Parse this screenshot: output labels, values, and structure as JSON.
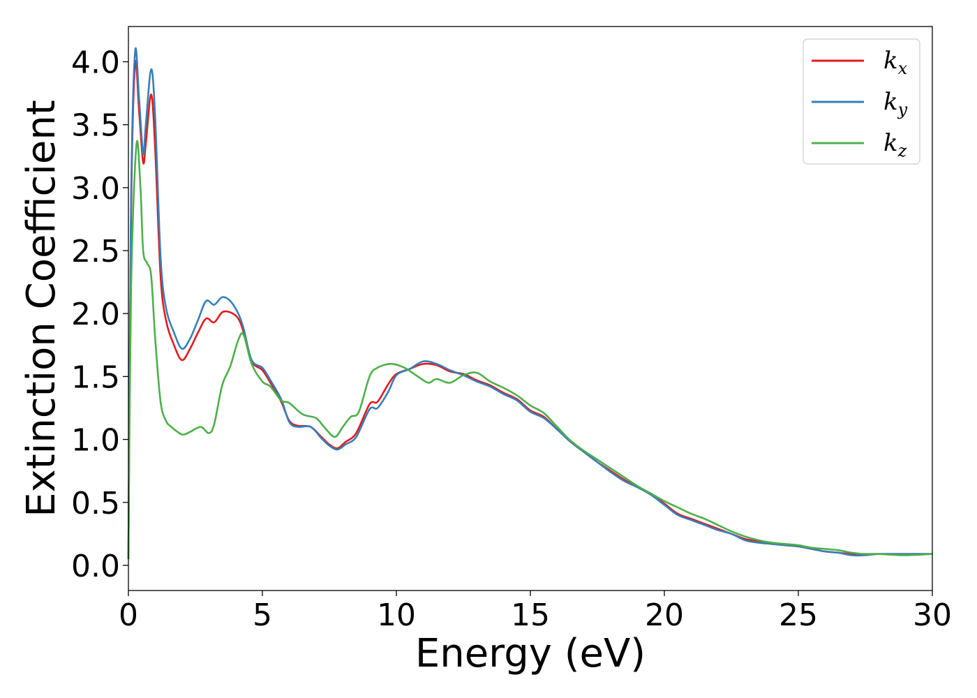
{
  "chart_data": {
    "type": "line",
    "xlabel": "Energy (eV)",
    "ylabel": "Extinction Coefficient",
    "xlim": [
      0,
      30
    ],
    "ylim": [
      -0.2,
      4.28
    ],
    "xticks": [
      0,
      5,
      10,
      15,
      20,
      25,
      30
    ],
    "xtick_labels": [
      "0",
      "5",
      "10",
      "15",
      "20",
      "25",
      "30"
    ],
    "yticks": [
      0.0,
      0.5,
      1.0,
      1.5,
      2.0,
      2.5,
      3.0,
      3.5,
      4.0
    ],
    "ytick_labels": [
      "0.0",
      "0.5",
      "1.0",
      "1.5",
      "2.0",
      "2.5",
      "3.0",
      "3.5",
      "4.0"
    ],
    "grid": false,
    "legend_position": "top-right",
    "series": [
      {
        "name": "k_x",
        "legend_base": "k",
        "legend_sub": "x",
        "color": "#e41a1c",
        "x": [
          0,
          0.1,
          0.25,
          0.4,
          0.55,
          0.65,
          0.85,
          1.0,
          1.2,
          1.4,
          1.7,
          2.0,
          2.3,
          2.6,
          2.9,
          3.2,
          3.5,
          3.8,
          4.1,
          4.3,
          4.6,
          5.0,
          5.3,
          5.7,
          6.0,
          6.3,
          6.8,
          7.2,
          7.5,
          7.8,
          8.1,
          8.5,
          9.0,
          9.3,
          9.7,
          10.0,
          10.5,
          11.0,
          11.5,
          12.0,
          12.5,
          13.0,
          13.5,
          14.0,
          14.5,
          15.0,
          15.5,
          16.0,
          16.5,
          17.0,
          17.5,
          18.0,
          18.5,
          19.0,
          19.5,
          20.0,
          20.5,
          21.0,
          21.5,
          22.0,
          22.5,
          23.0,
          23.5,
          24.0,
          24.5,
          25.0,
          25.5,
          26.0,
          26.5,
          27.0,
          27.5,
          28.0,
          29.0,
          30.0
        ],
        "values": [
          0.05,
          2.8,
          3.98,
          3.6,
          3.2,
          3.35,
          3.74,
          3.3,
          2.3,
          1.95,
          1.75,
          1.63,
          1.72,
          1.85,
          1.96,
          1.93,
          2.01,
          2.01,
          1.96,
          1.85,
          1.62,
          1.55,
          1.45,
          1.3,
          1.15,
          1.11,
          1.1,
          1.02,
          0.96,
          0.93,
          0.98,
          1.05,
          1.28,
          1.3,
          1.44,
          1.52,
          1.56,
          1.6,
          1.59,
          1.54,
          1.52,
          1.47,
          1.43,
          1.37,
          1.32,
          1.23,
          1.18,
          1.08,
          0.99,
          0.9,
          0.82,
          0.75,
          0.68,
          0.62,
          0.57,
          0.49,
          0.41,
          0.37,
          0.33,
          0.29,
          0.25,
          0.21,
          0.19,
          0.17,
          0.16,
          0.15,
          0.13,
          0.11,
          0.1,
          0.09,
          0.09,
          0.09,
          0.09,
          0.09
        ]
      },
      {
        "name": "k_y",
        "legend_base": "k",
        "legend_sub": "y",
        "color": "#377eb8",
        "x": [
          0,
          0.1,
          0.25,
          0.4,
          0.55,
          0.65,
          0.85,
          1.0,
          1.2,
          1.4,
          1.7,
          2.0,
          2.3,
          2.6,
          2.9,
          3.2,
          3.5,
          3.8,
          4.1,
          4.3,
          4.6,
          5.0,
          5.3,
          5.7,
          6.0,
          6.3,
          6.8,
          7.2,
          7.5,
          7.8,
          8.1,
          8.5,
          9.0,
          9.3,
          9.7,
          10.0,
          10.5,
          11.0,
          11.5,
          12.0,
          12.5,
          13.0,
          13.5,
          14.0,
          14.5,
          15.0,
          15.5,
          16.0,
          16.5,
          17.0,
          17.5,
          18.0,
          18.5,
          19.0,
          19.5,
          20.0,
          20.5,
          21.0,
          21.5,
          22.0,
          22.5,
          23.0,
          23.5,
          24.0,
          24.5,
          25.0,
          25.5,
          26.0,
          26.5,
          27.0,
          27.5,
          28.0,
          29.0,
          30.0
        ],
        "values": [
          0.05,
          2.9,
          4.08,
          3.7,
          3.27,
          3.5,
          3.94,
          3.55,
          2.45,
          2.05,
          1.85,
          1.72,
          1.8,
          1.95,
          2.1,
          2.07,
          2.13,
          2.1,
          2.0,
          1.88,
          1.63,
          1.57,
          1.47,
          1.32,
          1.14,
          1.1,
          1.1,
          1.01,
          0.95,
          0.92,
          0.96,
          1.02,
          1.24,
          1.25,
          1.38,
          1.51,
          1.56,
          1.62,
          1.6,
          1.55,
          1.51,
          1.46,
          1.42,
          1.36,
          1.31,
          1.22,
          1.17,
          1.08,
          0.98,
          0.9,
          0.82,
          0.74,
          0.67,
          0.62,
          0.56,
          0.48,
          0.4,
          0.36,
          0.32,
          0.28,
          0.25,
          0.2,
          0.18,
          0.17,
          0.16,
          0.15,
          0.13,
          0.11,
          0.1,
          0.08,
          0.08,
          0.09,
          0.09,
          0.09
        ]
      },
      {
        "name": "k_z",
        "legend_base": "k",
        "legend_sub": "z",
        "color": "#4daf4a",
        "x": [
          0,
          0.1,
          0.3,
          0.45,
          0.55,
          0.7,
          0.85,
          1.0,
          1.2,
          1.4,
          1.6,
          2.0,
          2.3,
          2.7,
          3.0,
          3.2,
          3.5,
          3.8,
          4.1,
          4.3,
          4.6,
          5.0,
          5.3,
          5.7,
          6.0,
          6.5,
          7.0,
          7.3,
          7.7,
          8.0,
          8.3,
          8.6,
          9.0,
          9.3,
          9.8,
          10.3,
          10.8,
          11.2,
          11.5,
          12.0,
          12.5,
          13.0,
          13.5,
          14.0,
          14.5,
          15.0,
          15.5,
          16.0,
          16.5,
          17.0,
          17.5,
          18.0,
          18.5,
          19.0,
          19.5,
          20.0,
          20.5,
          21.0,
          21.5,
          22.0,
          22.5,
          23.0,
          23.5,
          24.0,
          24.5,
          25.0,
          25.5,
          26.0,
          26.5,
          27.0,
          27.5,
          28.0,
          29.0,
          30.0
        ],
        "values": [
          0.05,
          2.2,
          3.34,
          3.0,
          2.5,
          2.4,
          2.3,
          1.8,
          1.3,
          1.15,
          1.1,
          1.04,
          1.06,
          1.1,
          1.05,
          1.12,
          1.43,
          1.58,
          1.79,
          1.83,
          1.6,
          1.46,
          1.42,
          1.31,
          1.29,
          1.2,
          1.17,
          1.1,
          1.02,
          1.1,
          1.18,
          1.22,
          1.5,
          1.57,
          1.6,
          1.57,
          1.5,
          1.45,
          1.48,
          1.45,
          1.51,
          1.53,
          1.46,
          1.41,
          1.35,
          1.27,
          1.21,
          1.1,
          0.99,
          0.91,
          0.84,
          0.77,
          0.7,
          0.63,
          0.57,
          0.51,
          0.46,
          0.41,
          0.37,
          0.32,
          0.27,
          0.23,
          0.2,
          0.18,
          0.17,
          0.16,
          0.14,
          0.13,
          0.12,
          0.1,
          0.09,
          0.09,
          0.08,
          0.09
        ]
      }
    ]
  }
}
